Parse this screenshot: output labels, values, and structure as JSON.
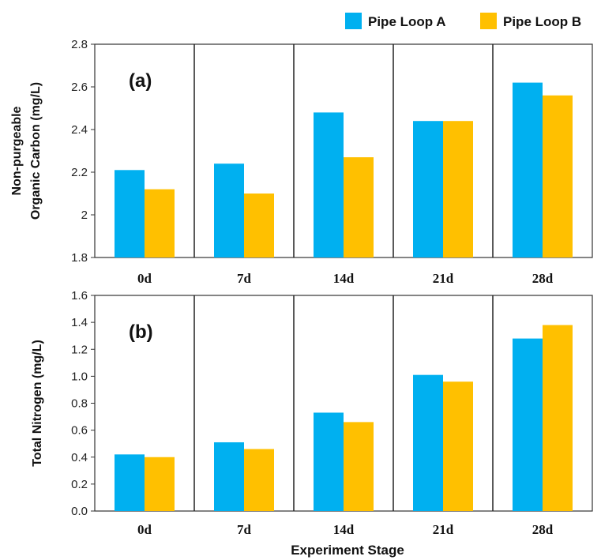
{
  "legend": {
    "series_a": "Pipe Loop A",
    "series_b": "Pipe Loop B"
  },
  "x_axis_title": "Experiment Stage",
  "colors": {
    "series_a": "#00B0F0",
    "series_b": "#FFC000"
  },
  "chart_data": [
    {
      "type": "bar",
      "panel_label": "(a)",
      "categories": [
        "0d",
        "7d",
        "14d",
        "21d",
        "28d"
      ],
      "series": [
        {
          "name": "Pipe Loop A",
          "values": [
            2.21,
            2.24,
            2.48,
            2.44,
            2.62
          ]
        },
        {
          "name": "Pipe Loop B",
          "values": [
            2.12,
            2.1,
            2.27,
            2.44,
            2.56
          ]
        }
      ],
      "ylabel_lines": [
        "Non-purgeable",
        "Organic Carbon (mg/L)"
      ],
      "ylim": [
        1.8,
        2.8
      ],
      "yticks": [
        "1.8",
        "2",
        "2.2",
        "2.4",
        "2.6",
        "2.8"
      ],
      "grid": false,
      "category_dividers": true,
      "legend": "top-right"
    },
    {
      "type": "bar",
      "panel_label": "(b)",
      "categories": [
        "0d",
        "7d",
        "14d",
        "21d",
        "28d"
      ],
      "series": [
        {
          "name": "Pipe Loop A",
          "values": [
            0.42,
            0.51,
            0.73,
            1.01,
            1.28
          ]
        },
        {
          "name": "Pipe Loop B",
          "values": [
            0.4,
            0.46,
            0.66,
            0.96,
            1.38
          ]
        }
      ],
      "ylabel_lines": [
        "Total Nitrogen (mg/L)"
      ],
      "ylim": [
        0.0,
        1.6
      ],
      "yticks": [
        "0.0",
        "0.2",
        "0.4",
        "0.6",
        "0.8",
        "1.0",
        "1.2",
        "1.4",
        "1.6"
      ],
      "xlabel": "Experiment Stage",
      "grid": false,
      "category_dividers": true
    }
  ]
}
